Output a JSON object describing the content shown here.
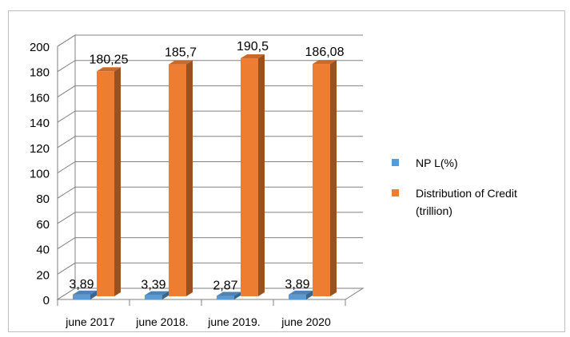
{
  "chart_data": {
    "type": "bar",
    "categories": [
      "june 2017",
      "june 2018.",
      "june 2019.",
      "june 2020"
    ],
    "series": [
      {
        "name": "NP L(%)",
        "values": [
          3.89,
          3.39,
          2.87,
          3.89
        ],
        "labels": [
          "3,89",
          "3,39",
          "2,87",
          "3,89"
        ],
        "color": "#5b9bd5"
      },
      {
        "name": "Distribution of Credit (trillion)",
        "values": [
          180.25,
          185.7,
          190.5,
          186.08
        ],
        "labels": [
          "180,25",
          "185,7",
          "190,5",
          "186,08"
        ],
        "color": "#ed7d31"
      }
    ],
    "ylim": [
      0,
      200
    ],
    "yticks": [
      "0",
      "20",
      "40",
      "60",
      "80",
      "100",
      "120",
      "140",
      "160",
      "180",
      "200"
    ],
    "grid": true,
    "legend_position": "right",
    "style": "3d-column"
  },
  "legend": {
    "npl_label": "NP L(%)",
    "credit_line1": "Distribution of Credit",
    "credit_line2": "(trillion)"
  }
}
